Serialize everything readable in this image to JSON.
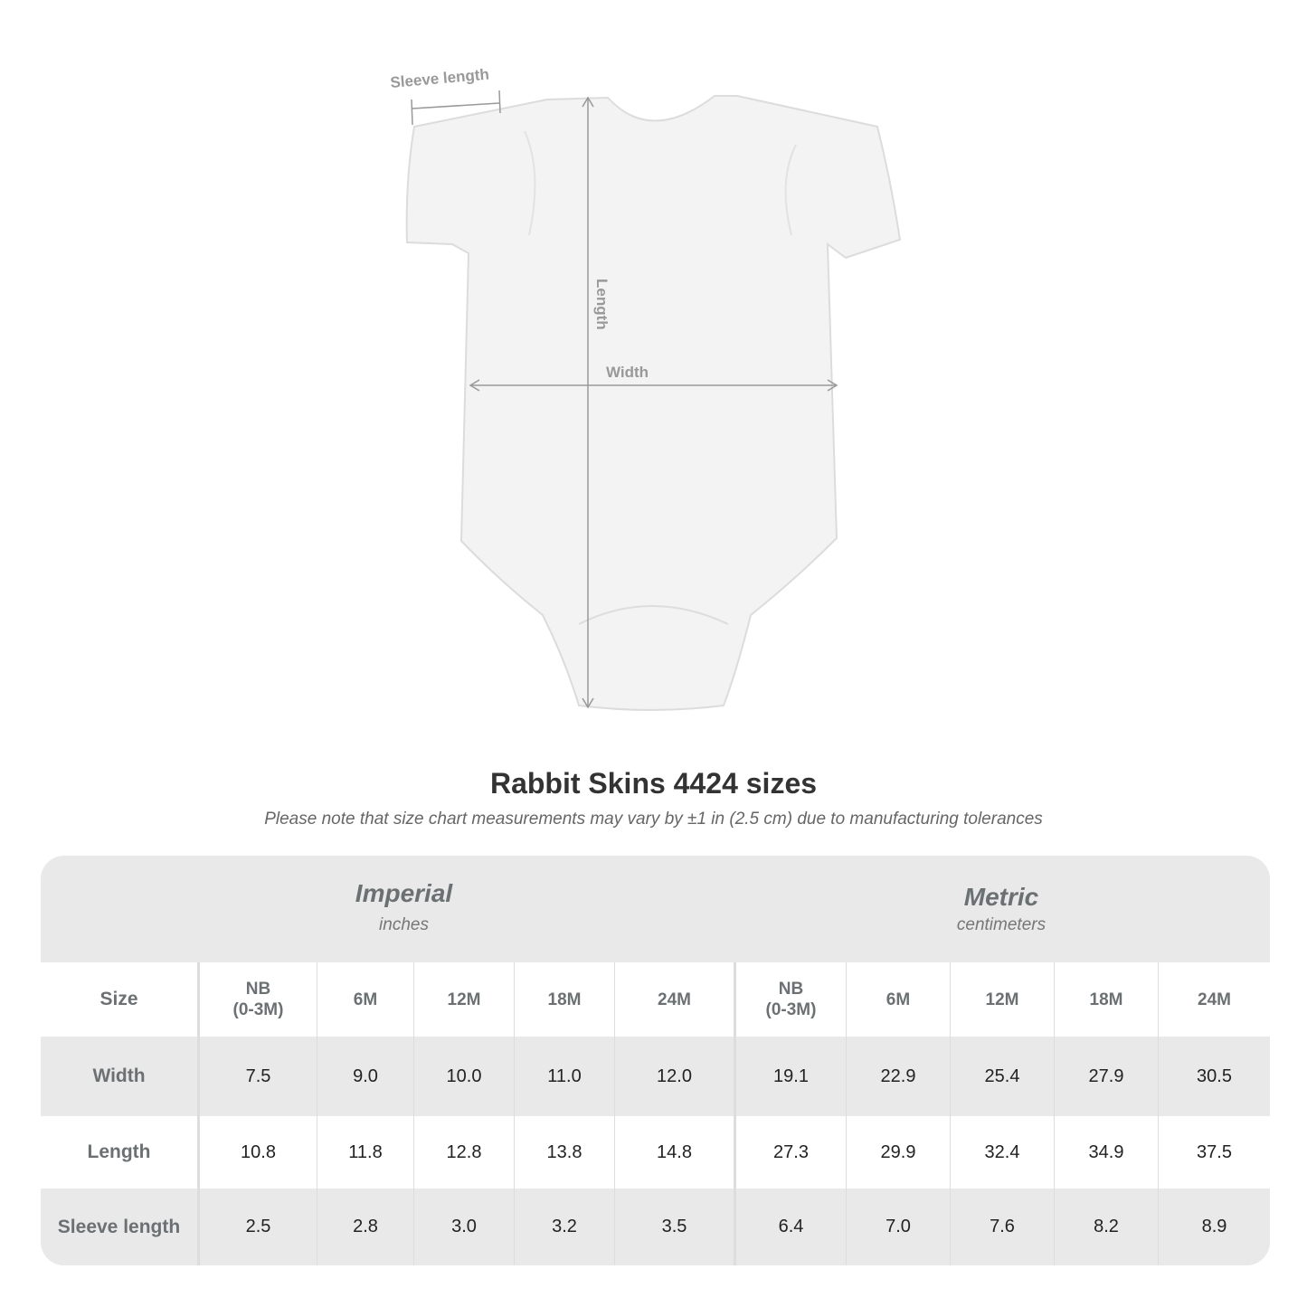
{
  "diagram": {
    "sleeve_label": "Sleeve length",
    "length_label": "Length",
    "width_label": "Width"
  },
  "title": "Rabbit Skins 4424 sizes",
  "subtitle": "Please note that size chart measurements may vary by ±1 in (2.5 cm) due to manufacturing tolerances",
  "table": {
    "imperial": {
      "label": "Imperial",
      "unit": "inches"
    },
    "metric": {
      "label": "Metric",
      "unit": "centimeters"
    },
    "size_label": "Size",
    "sizes": [
      "NB\n(0-3M)",
      "6M",
      "12M",
      "18M",
      "24M"
    ],
    "rows": [
      {
        "label": "Width",
        "imperial": [
          "7.5",
          "9.0",
          "10.0",
          "11.0",
          "12.0"
        ],
        "metric": [
          "19.1",
          "22.9",
          "25.4",
          "27.9",
          "30.5"
        ]
      },
      {
        "label": "Length",
        "imperial": [
          "10.8",
          "11.8",
          "12.8",
          "13.8",
          "14.8"
        ],
        "metric": [
          "27.3",
          "29.9",
          "32.4",
          "34.9",
          "37.5"
        ]
      },
      {
        "label": "Sleeve length",
        "imperial": [
          "2.5",
          "2.8",
          "3.0",
          "3.2",
          "3.5"
        ],
        "metric": [
          "6.4",
          "7.0",
          "7.6",
          "8.2",
          "8.9"
        ]
      }
    ]
  }
}
